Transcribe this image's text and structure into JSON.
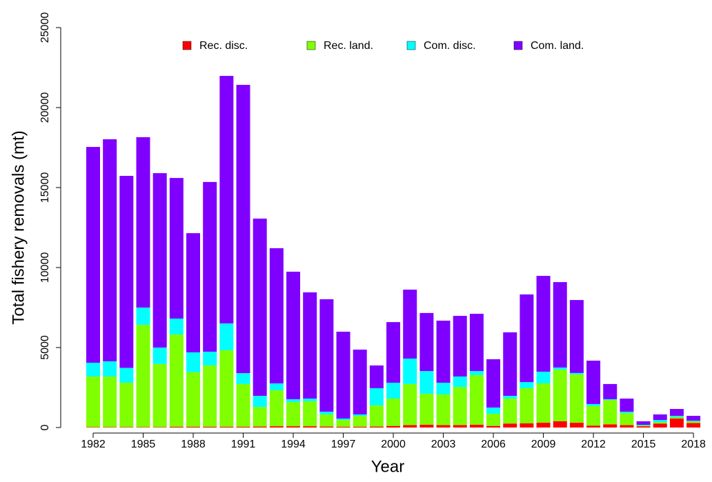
{
  "chart_data": {
    "type": "stacked_bar",
    "x_label": "Year",
    "y_label": "Total fishery removals (mt)",
    "categories": [
      "1982",
      null,
      null,
      "1985",
      null,
      null,
      "1988",
      null,
      null,
      "1991",
      null,
      null,
      "1994",
      null,
      null,
      "1997",
      null,
      null,
      "2000",
      null,
      null,
      "2003",
      null,
      null,
      "2006",
      null,
      null,
      "2009",
      null,
      null,
      "2012",
      null,
      null,
      "2015",
      null,
      null,
      "2018"
    ],
    "series": [
      {
        "name": "Rec. disc.",
        "color": "#ff0000",
        "values": [
          30,
          30,
          30,
          30,
          30,
          50,
          50,
          50,
          50,
          50,
          60,
          80,
          80,
          80,
          60,
          50,
          50,
          60,
          100,
          150,
          180,
          150,
          150,
          180,
          100,
          250,
          260,
          300,
          400,
          300,
          120,
          200,
          150,
          80,
          250,
          560,
          280
        ]
      },
      {
        "name": "Rec. land.",
        "color": "#80ff00",
        "values": [
          3160,
          3160,
          2770,
          6390,
          3940,
          5770,
          3400,
          3830,
          4780,
          2670,
          1230,
          2250,
          1510,
          1560,
          760,
          420,
          680,
          1320,
          1710,
          2570,
          1930,
          1920,
          2390,
          3100,
          760,
          1560,
          2200,
          2460,
          3220,
          3020,
          1220,
          1520,
          750,
          50,
          90,
          90,
          110
        ]
      },
      {
        "name": "Com. disc.",
        "color": "#00ffff",
        "values": [
          860,
          950,
          930,
          1080,
          1030,
          990,
          1250,
          860,
          1680,
          680,
          690,
          430,
          180,
          170,
          170,
          90,
          90,
          1080,
          990,
          1590,
          1420,
          730,
          650,
          250,
          390,
          170,
          380,
          730,
          130,
          90,
          130,
          50,
          90,
          40,
          130,
          80,
          40
        ]
      },
      {
        "name": "Com. land.",
        "color": "#8000ff",
        "values": [
          13490,
          13880,
          12000,
          10650,
          10900,
          8790,
          7450,
          10610,
          15470,
          18020,
          11080,
          8450,
          7970,
          6640,
          7030,
          5430,
          4050,
          1420,
          3790,
          4310,
          3630,
          3880,
          3790,
          3580,
          3020,
          3970,
          5480,
          5990,
          5340,
          4560,
          2710,
          950,
          820,
          220,
          350,
          430,
          300
        ]
      }
    ],
    "ylim": [
      0,
      25000
    ],
    "yticks": [
      0,
      5000,
      10000,
      15000,
      20000,
      25000
    ],
    "grid": false,
    "legend": "top"
  }
}
